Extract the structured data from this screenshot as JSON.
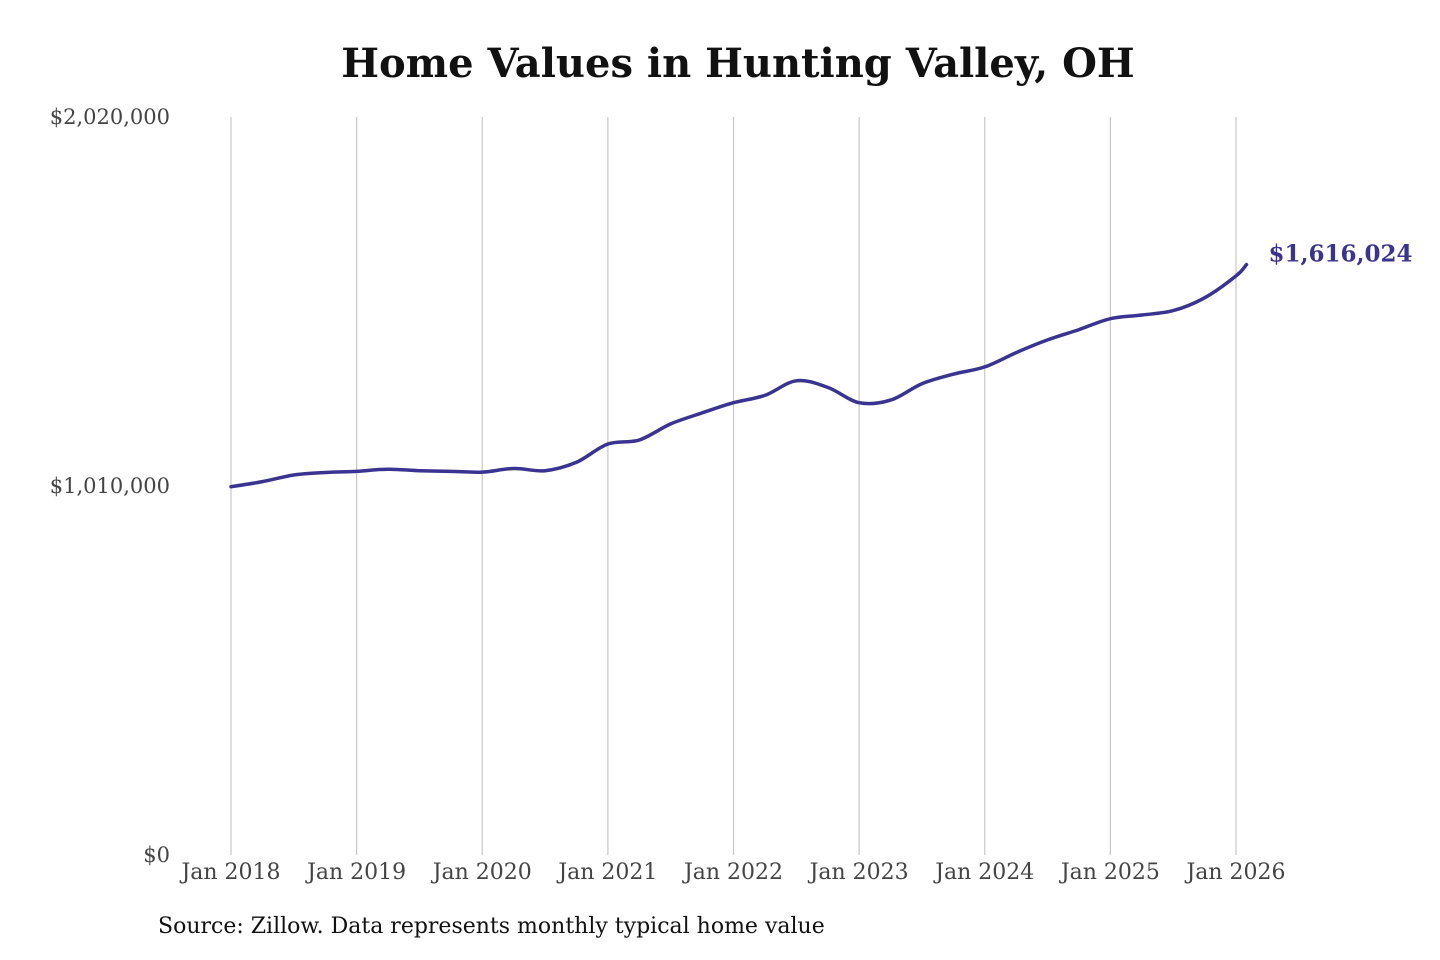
{
  "chart_data": {
    "type": "line",
    "title": "Home Values in Hunting Valley, OH",
    "xlabel": "",
    "ylabel": "",
    "ylim": [
      0,
      2020000
    ],
    "y_ticks": [
      {
        "value": 0,
        "label": "$0"
      },
      {
        "value": 1010000,
        "label": "$1,010,000"
      },
      {
        "value": 2020000,
        "label": "$2,020,000"
      }
    ],
    "x_ticks": [
      {
        "value": "2018-01",
        "label": "Jan 2018"
      },
      {
        "value": "2019-01",
        "label": "Jan 2019"
      },
      {
        "value": "2020-01",
        "label": "Jan 2020"
      },
      {
        "value": "2021-01",
        "label": "Jan 2021"
      },
      {
        "value": "2022-01",
        "label": "Jan 2022"
      },
      {
        "value": "2023-01",
        "label": "Jan 2023"
      },
      {
        "value": "2024-01",
        "label": "Jan 2024"
      },
      {
        "value": "2025-01",
        "label": "Jan 2025"
      },
      {
        "value": "2026-01",
        "label": "Jan 2026"
      }
    ],
    "grid": {
      "vertical": true,
      "horizontal": false
    },
    "series": [
      {
        "color": "#3b3391",
        "x": [
          "2018-01",
          "2018-04",
          "2018-07",
          "2018-10",
          "2019-01",
          "2019-04",
          "2019-07",
          "2019-10",
          "2020-01",
          "2020-04",
          "2020-07",
          "2020-10",
          "2021-01",
          "2021-04",
          "2021-07",
          "2021-10",
          "2022-01",
          "2022-04",
          "2022-07",
          "2022-10",
          "2023-01",
          "2023-04",
          "2023-07",
          "2023-10",
          "2024-01",
          "2024-04",
          "2024-07",
          "2024-10",
          "2025-01",
          "2025-04",
          "2025-07",
          "2025-10",
          "2026-01",
          "2026-02"
        ],
        "values": [
          1008000,
          1022000,
          1040000,
          1047000,
          1050000,
          1056000,
          1052000,
          1050000,
          1048000,
          1058000,
          1052000,
          1075000,
          1125000,
          1136000,
          1180000,
          1210000,
          1238000,
          1258000,
          1298000,
          1280000,
          1238000,
          1245000,
          1290000,
          1316000,
          1336000,
          1375000,
          1410000,
          1438000,
          1468000,
          1478000,
          1490000,
          1525000,
          1585000,
          1616024
        ]
      }
    ],
    "end_label": "$1,616,024"
  },
  "source_note": "Source: Zillow. Data represents monthly typical home value"
}
